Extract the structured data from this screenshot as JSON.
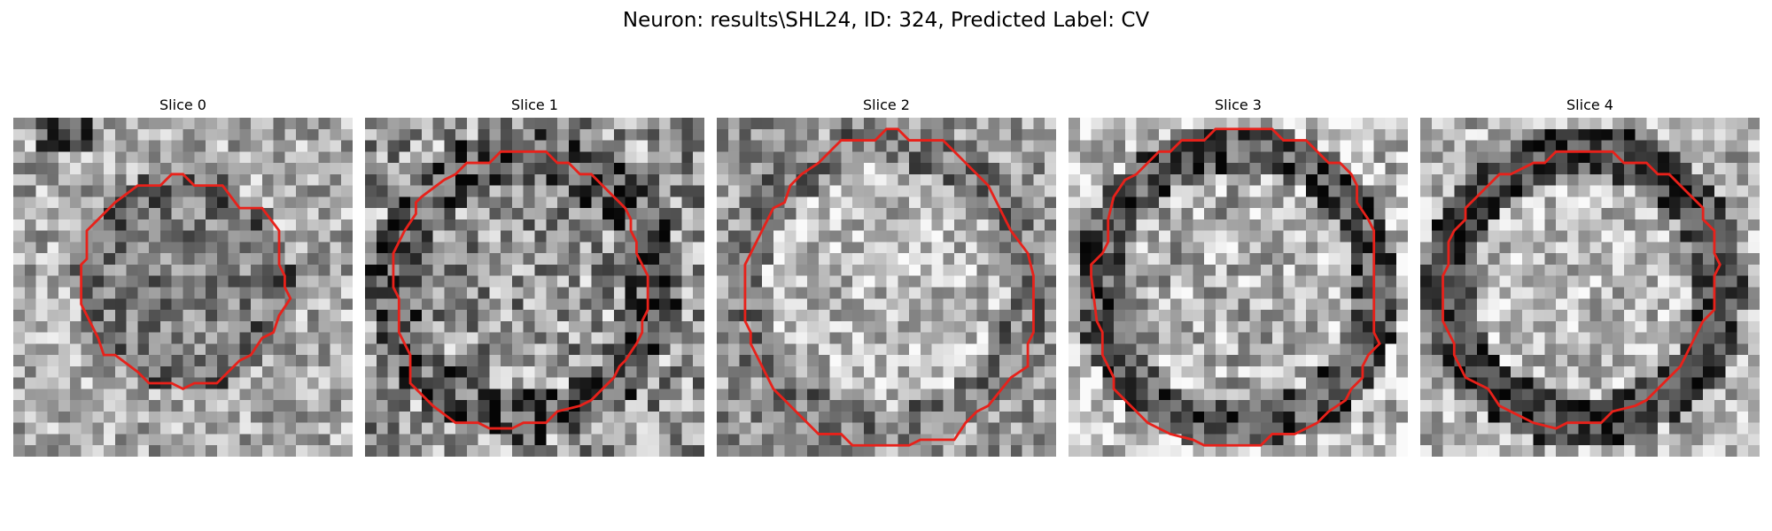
{
  "figure": {
    "title": "Neuron: results\\SHL24, ID: 324, Predicted Label: CV"
  },
  "panels": [
    {
      "title": "Slice 0",
      "kind": "small-dark",
      "seed": 11
    },
    {
      "title": "Slice 1",
      "kind": "medium",
      "seed": 23
    },
    {
      "title": "Slice 2",
      "kind": "large-bright",
      "seed": 37
    },
    {
      "title": "Slice 3",
      "kind": "large-ring",
      "seed": 51
    },
    {
      "title": "Slice 4",
      "kind": "large-dark-ring",
      "seed": 73
    }
  ],
  "contour_color": "#e8211a",
  "colormap": "grayscale"
}
